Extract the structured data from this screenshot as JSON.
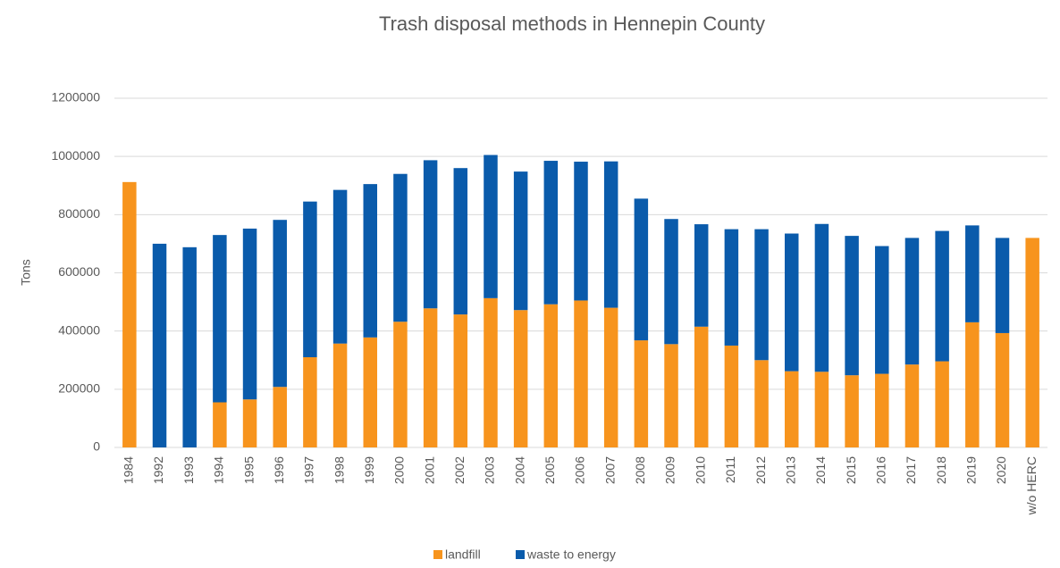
{
  "chart_data": {
    "type": "stacked_bar",
    "title": "Trash disposal methods in Hennepin County",
    "y_label": "Tons",
    "categories": [
      "1984",
      "1992",
      "1993",
      "1994",
      "1995",
      "1996",
      "1997",
      "1998",
      "1999",
      "2000",
      "2001",
      "2002",
      "2003",
      "2004",
      "2005",
      "2006",
      "2007",
      "2008",
      "2009",
      "2010",
      "2011",
      "2012",
      "2013",
      "2014",
      "2015",
      "2016",
      "2017",
      "2018",
      "2019",
      "2020",
      "w/o HERC"
    ],
    "series": [
      {
        "name": "landfill",
        "color": "#f7941d",
        "values": [
          912000,
          0,
          0,
          155000,
          165000,
          208000,
          310000,
          357000,
          378000,
          432000,
          478000,
          457000,
          513000,
          472000,
          492000,
          505000,
          480000,
          368000,
          355000,
          415000,
          350000,
          300000,
          262000,
          260000,
          248000,
          253000,
          285000,
          296000,
          430000,
          393000,
          720000
        ]
      },
      {
        "name": "waste to energy",
        "color": "#0a5bab",
        "values": [
          0,
          700000,
          688000,
          575000,
          587000,
          574000,
          535000,
          528000,
          527000,
          508000,
          509000,
          503000,
          492000,
          476000,
          493000,
          477000,
          503000,
          487000,
          430000,
          352000,
          400000,
          450000,
          473000,
          508000,
          479000,
          439000,
          435000,
          448000,
          333000,
          327000,
          0
        ]
      }
    ],
    "ylim": [
      0,
      1200000
    ],
    "yticks": [
      0,
      200000,
      400000,
      600000,
      800000,
      1000000,
      1200000
    ],
    "grid": true,
    "legend": "bottom"
  }
}
